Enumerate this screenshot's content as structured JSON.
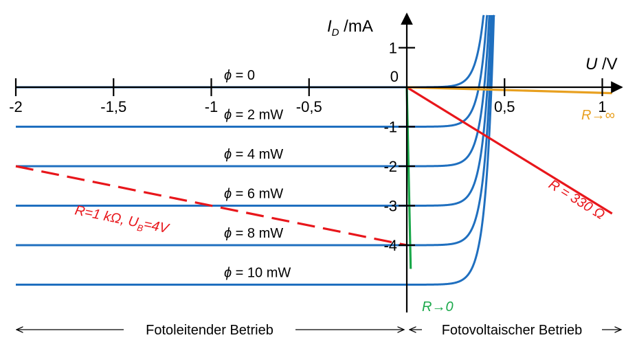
{
  "chart_data": {
    "type": "line",
    "title": "",
    "xlabel": {
      "var": "U",
      "unit": "V"
    },
    "ylabel": {
      "var": "I",
      "sub": "D",
      "unit": "mA"
    },
    "xlim": [
      -2,
      1.05
    ],
    "ylim": [
      -4.6,
      1.4
    ],
    "x_ticks": [
      -2,
      -1.5,
      -1,
      -0.5,
      0.5,
      1
    ],
    "x_tick_labels": [
      "-2",
      "-1,5",
      "-1",
      "-0,5",
      "0,5",
      "1"
    ],
    "y_ticks": [
      1,
      0,
      -1,
      -2,
      -3,
      -4
    ],
    "y_tick_labels": [
      "1",
      "0",
      "-1",
      "-2",
      "-3",
      "-4"
    ],
    "grid": false,
    "diode_curves": {
      "color": "#1f6fbf",
      "saturation_current_mA": 0.0001,
      "thermal_voltage_V": 0.04,
      "series": [
        {
          "label": "ϕ = 0",
          "photocurrent_mA": 0
        },
        {
          "label": "ϕ = 2 mW",
          "photocurrent_mA": 1
        },
        {
          "label": "ϕ = 4 mW",
          "photocurrent_mA": 2
        },
        {
          "label": "ϕ = 6 mW",
          "photocurrent_mA": 3
        },
        {
          "label": "ϕ = 8 mW",
          "photocurrent_mA": 4
        },
        {
          "label": "ϕ = 10 mW",
          "photocurrent_mA": 5
        }
      ]
    },
    "load_lines": [
      {
        "label": "R=1 kΩ, U_B=4V",
        "color": "#e8161b",
        "style": "dashed",
        "x": [
          -2,
          0
        ],
        "y": [
          -2,
          -4
        ]
      },
      {
        "label": "R = 330 Ω",
        "color": "#e8161b",
        "style": "solid",
        "x": [
          0,
          1.05
        ],
        "y": [
          0,
          -3.2
        ]
      },
      {
        "label": "R→∞",
        "color": "#e8a020",
        "style": "solid",
        "x": [
          0,
          1.05
        ],
        "y": [
          0,
          -0.15
        ]
      },
      {
        "label": "R→0",
        "color": "#1aa84a",
        "style": "solid",
        "x": [
          0,
          0.02
        ],
        "y": [
          0,
          -4.6
        ]
      }
    ],
    "regions": [
      {
        "label": "Fotoleitender Betrieb",
        "x_range": [
          -2,
          0
        ]
      },
      {
        "label": "Fotovoltaischer Betrieb",
        "x_range": [
          0,
          1.05
        ]
      }
    ]
  }
}
